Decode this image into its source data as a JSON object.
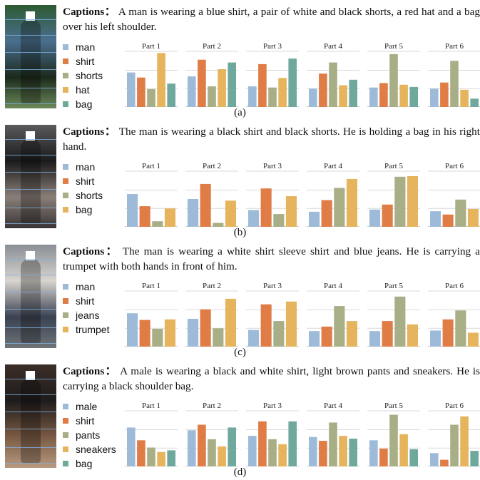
{
  "figure": {
    "caption_label": "Captions：",
    "parts": [
      "Part 1",
      "Part 2",
      "Part 3",
      "Part 4",
      "Part 5",
      "Part 6"
    ],
    "panels": [
      {
        "tag": "(a)",
        "caption": "A man is wearing a blue shirt, a pair of white and black shorts, a red hat and a bag over his left shoulder.",
        "photo_colors": [
          "#2d5a32",
          "#4a6f8f",
          "#1c2a1c",
          "#6c8a5a"
        ],
        "legend": [
          "man",
          "shirt",
          "shorts",
          "hat",
          "bag"
        ]
      },
      {
        "tag": "(b)",
        "caption": "The man is wearing a black shirt and black shorts. He is holding a bag in his right hand.",
        "photo_colors": [
          "#5a5a5c",
          "#1b1b1d",
          "#8a7f78",
          "#3a3436"
        ],
        "legend": [
          "man",
          "shirt",
          "shorts",
          "bag"
        ]
      },
      {
        "tag": "(c)",
        "caption": "The man is wearing a white shirt sleeve shirt and blue jeans. He is carrying a trumpet with both hands in front of him.",
        "photo_colors": [
          "#8a8f96",
          "#d8d4cf",
          "#3a4252",
          "#6f7478"
        ],
        "legend": [
          "man",
          "shirt",
          "jeans",
          "trumpet"
        ]
      },
      {
        "tag": "(d)",
        "caption": "A male is wearing a black and white shirt, light brown pants and sneakers. He is carrying a black shoulder bag.",
        "photo_colors": [
          "#3c2e28",
          "#1e1c1c",
          "#7a5a44",
          "#b89a80"
        ],
        "legend": [
          "male",
          "shirt",
          "pants",
          "sneakers",
          "bag"
        ]
      }
    ]
  },
  "colors": {
    "series": [
      "#9dbbd8",
      "#e07c45",
      "#a8ae86",
      "#e6b45c",
      "#6fa89d"
    ],
    "grid": "#d9d9d9",
    "axis": "#999999"
  },
  "chart_data": [
    {
      "type": "bar",
      "panel": "(a)",
      "categories": [
        "Part 1",
        "Part 2",
        "Part 3",
        "Part 4",
        "Part 5",
        "Part 6"
      ],
      "ylim": [
        0,
        100
      ],
      "grid": true,
      "series": [
        {
          "name": "man",
          "values": [
            62,
            55,
            37,
            33,
            35,
            33
          ]
        },
        {
          "name": "shirt",
          "values": [
            53,
            85,
            77,
            60,
            43,
            44
          ]
        },
        {
          "name": "shorts",
          "values": [
            32,
            37,
            35,
            80,
            95,
            83
          ]
        },
        {
          "name": "hat",
          "values": [
            97,
            68,
            52,
            39,
            40,
            31
          ]
        },
        {
          "name": "bag",
          "values": [
            42,
            80,
            87,
            49,
            36,
            15
          ]
        }
      ]
    },
    {
      "type": "bar",
      "panel": "(b)",
      "categories": [
        "Part 1",
        "Part 2",
        "Part 3",
        "Part 4",
        "Part 5",
        "Part 6"
      ],
      "ylim": [
        0,
        100
      ],
      "grid": true,
      "series": [
        {
          "name": "man",
          "values": [
            59,
            50,
            30,
            27,
            31,
            28
          ]
        },
        {
          "name": "shirt",
          "values": [
            37,
            77,
            69,
            48,
            40,
            22
          ]
        },
        {
          "name": "shorts",
          "values": [
            10,
            7,
            23,
            70,
            90,
            49
          ]
        },
        {
          "name": "bag",
          "values": [
            33,
            47,
            55,
            86,
            91,
            32
          ]
        }
      ]
    },
    {
      "type": "bar",
      "panel": "(c)",
      "categories": [
        "Part 1",
        "Part 2",
        "Part 3",
        "Part 4",
        "Part 5",
        "Part 6"
      ],
      "ylim": [
        0,
        100
      ],
      "grid": true,
      "series": [
        {
          "name": "man",
          "values": [
            60,
            50,
            30,
            28,
            28,
            29
          ]
        },
        {
          "name": "shirt",
          "values": [
            48,
            67,
            76,
            36,
            46,
            49
          ]
        },
        {
          "name": "jeans",
          "values": [
            32,
            33,
            46,
            73,
            90,
            65
          ]
        },
        {
          "name": "trumpet",
          "values": [
            49,
            86,
            81,
            46,
            40,
            25
          ]
        }
      ]
    },
    {
      "type": "bar",
      "panel": "(d)",
      "categories": [
        "Part 1",
        "Part 2",
        "Part 3",
        "Part 4",
        "Part 5",
        "Part 6"
      ],
      "ylim": [
        0,
        100
      ],
      "grid": true,
      "series": [
        {
          "name": "male",
          "values": [
            70,
            65,
            55,
            53,
            47,
            24
          ]
        },
        {
          "name": "shirt",
          "values": [
            47,
            75,
            81,
            46,
            32,
            12
          ]
        },
        {
          "name": "pants",
          "values": [
            34,
            49,
            49,
            79,
            93,
            75
          ]
        },
        {
          "name": "sneakers",
          "values": [
            26,
            36,
            40,
            55,
            58,
            90
          ]
        },
        {
          "name": "bag",
          "values": [
            29,
            70,
            81,
            50,
            31,
            28
          ]
        }
      ]
    }
  ]
}
